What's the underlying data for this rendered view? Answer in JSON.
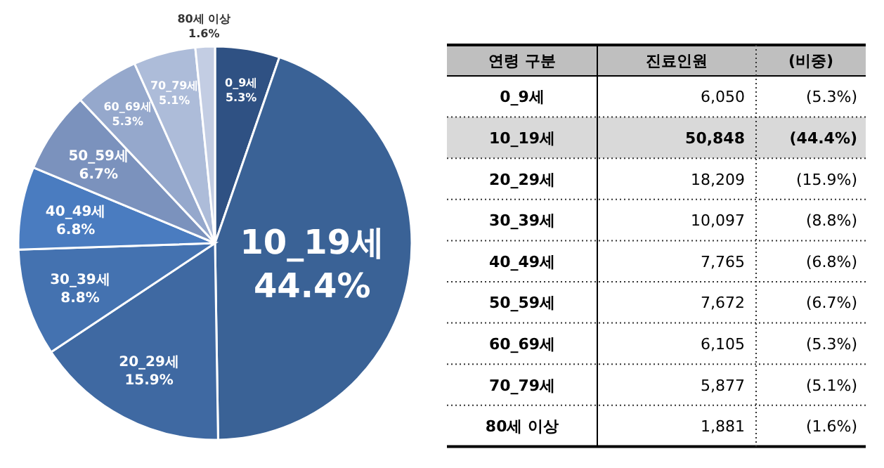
{
  "chart_data": [
    {
      "type": "pie",
      "categories": [
        "0_9세",
        "10_19세",
        "20_29세",
        "30_39세",
        "40_49세",
        "50_59세",
        "60_69세",
        "70_79세",
        "80세 이상"
      ],
      "values": [
        5.3,
        44.4,
        15.9,
        8.8,
        6.8,
        6.7,
        5.3,
        5.1,
        1.6
      ],
      "value_labels": [
        "5.3%",
        "44.4%",
        "15.9%",
        "8.8%",
        "6.8%",
        "6.7%",
        "5.3%",
        "5.1%",
        "1.6%"
      ],
      "colors": [
        "#2f5183",
        "#3a6296",
        "#3f69a2",
        "#4472b0",
        "#4a7cc0",
        "#7b92bd",
        "#95a8cc",
        "#adbcd9",
        "#c3cde3"
      ]
    },
    {
      "type": "other",
      "categories": [
        "연령 구분",
        "진료인원",
        "(비중)"
      ],
      "y_categories": [
        "0_9세",
        "10_19세",
        "20_29세",
        "30_39세",
        "40_49세",
        "50_59세",
        "60_69세",
        "70_79세",
        "80세 이상"
      ],
      "cell_labels": [
        [
          "6,050",
          "(5.3%)"
        ],
        [
          "50,848",
          "(44.4%)"
        ],
        [
          "18,209",
          "(15.9%)"
        ],
        [
          "10,097",
          "(8.8%)"
        ],
        [
          "7,765",
          "(6.8%)"
        ],
        [
          "7,672",
          "(6.7%)"
        ],
        [
          "6,105",
          "(5.3%)"
        ],
        [
          "5,877",
          "(5.1%)"
        ],
        [
          "1,881",
          "(1.6%)"
        ]
      ]
    }
  ]
}
